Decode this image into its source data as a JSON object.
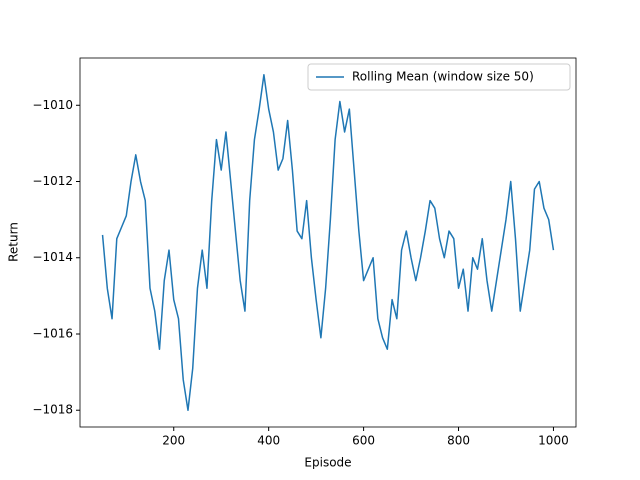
{
  "chart_data": {
    "type": "line",
    "xlabel": "Episode",
    "ylabel": "Return",
    "x": [
      50,
      60,
      70,
      80,
      90,
      100,
      110,
      120,
      130,
      140,
      150,
      160,
      170,
      180,
      190,
      200,
      210,
      220,
      230,
      240,
      250,
      260,
      270,
      280,
      290,
      300,
      310,
      320,
      330,
      340,
      350,
      360,
      370,
      380,
      390,
      400,
      410,
      420,
      430,
      440,
      450,
      460,
      470,
      480,
      490,
      500,
      510,
      520,
      530,
      540,
      550,
      560,
      570,
      580,
      590,
      600,
      610,
      620,
      630,
      640,
      650,
      660,
      670,
      680,
      690,
      700,
      710,
      720,
      730,
      740,
      750,
      760,
      770,
      780,
      790,
      800,
      810,
      820,
      830,
      840,
      850,
      860,
      870,
      880,
      890,
      900,
      910,
      920,
      930,
      940,
      950,
      960,
      970,
      980,
      990,
      1000
    ],
    "series": [
      {
        "name": "Rolling Mean (window size 50)",
        "color": "#1f77b4",
        "values": [
          -1013.4,
          -1014.8,
          -1015.6,
          -1013.5,
          -1013.2,
          -1012.9,
          -1012.0,
          -1011.3,
          -1012.0,
          -1012.5,
          -1014.8,
          -1015.4,
          -1016.4,
          -1014.6,
          -1013.8,
          -1015.1,
          -1015.6,
          -1017.2,
          -1018.0,
          -1016.9,
          -1014.8,
          -1013.8,
          -1014.8,
          -1012.5,
          -1010.9,
          -1011.7,
          -1010.7,
          -1012.0,
          -1013.3,
          -1014.6,
          -1015.4,
          -1012.5,
          -1010.9,
          -1010.1,
          -1009.2,
          -1010.1,
          -1010.7,
          -1011.7,
          -1011.4,
          -1010.4,
          -1011.7,
          -1013.3,
          -1013.5,
          -1012.5,
          -1014.0,
          -1015.1,
          -1016.1,
          -1014.8,
          -1013.0,
          -1010.9,
          -1009.9,
          -1010.7,
          -1010.1,
          -1011.7,
          -1013.3,
          -1014.6,
          -1014.3,
          -1014.0,
          -1015.6,
          -1016.1,
          -1016.4,
          -1015.1,
          -1015.6,
          -1013.8,
          -1013.3,
          -1014.0,
          -1014.6,
          -1014.0,
          -1013.3,
          -1012.5,
          -1012.7,
          -1013.5,
          -1014.0,
          -1013.3,
          -1013.5,
          -1014.8,
          -1014.3,
          -1015.4,
          -1014.0,
          -1014.3,
          -1013.5,
          -1014.6,
          -1015.4,
          -1014.6,
          -1013.8,
          -1013.0,
          -1012.0,
          -1013.5,
          -1015.4,
          -1014.6,
          -1013.8,
          -1012.2,
          -1012.0,
          -1012.7,
          -1013.0,
          -1013.8
        ]
      }
    ],
    "xlim": [
      2.5,
      1047.5
    ],
    "xticks": [
      200,
      400,
      600,
      800,
      1000
    ],
    "ylim": [
      -1018.44,
      -1008.76
    ],
    "yticks": [
      {
        "value": -1018,
        "label": "−1018"
      },
      {
        "value": -1016,
        "label": "−1016"
      },
      {
        "value": -1014,
        "label": "−1014"
      },
      {
        "value": -1012,
        "label": "−1012"
      },
      {
        "value": -1010,
        "label": "−1010"
      }
    ],
    "legend": "upper right",
    "grid": false
  }
}
